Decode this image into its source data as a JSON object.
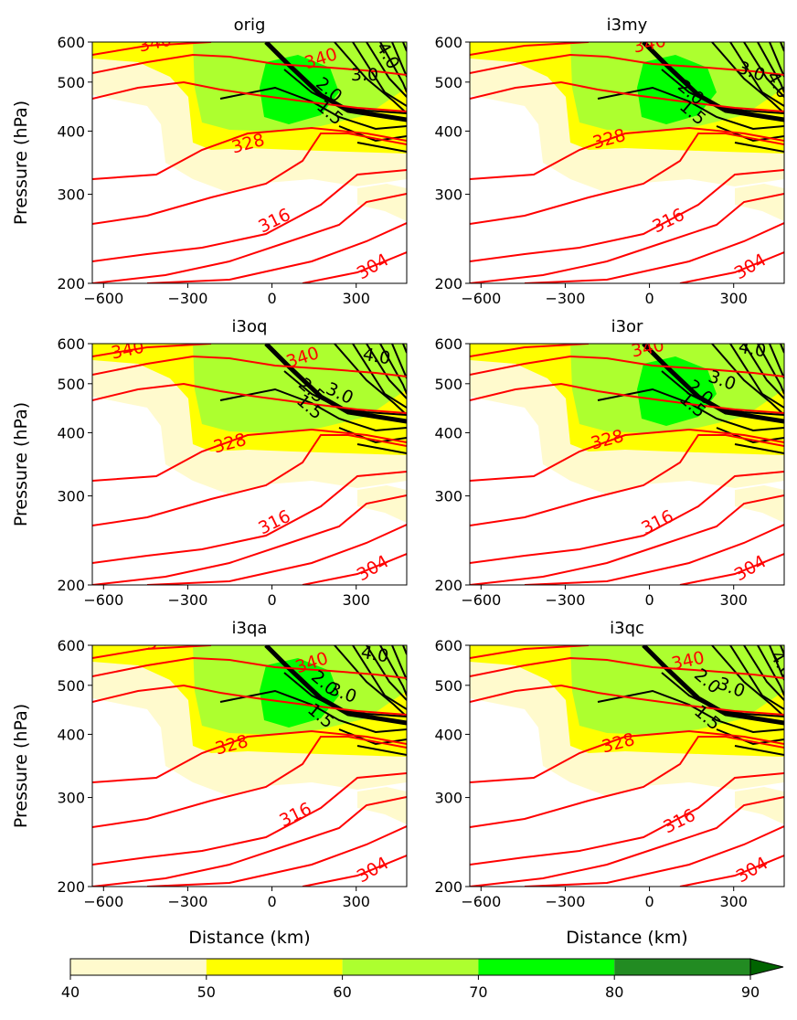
{
  "figure": {
    "ylabel": "Pressure (hPa)",
    "xlabel": "Distance (km)",
    "colorbar": {
      "levels": [
        40,
        50,
        60,
        70,
        80,
        90
      ],
      "colors": [
        "#fffacd",
        "#ffff00",
        "#adff2f",
        "#00ff00",
        "#228b22",
        "#006400"
      ],
      "extend": "max"
    }
  },
  "chart_data": [
    {
      "type": "contour",
      "title": "orig",
      "xticks": [
        -600,
        -300,
        0,
        300
      ],
      "yticks": [
        200,
        300,
        400,
        500,
        600
      ],
      "xlim": [
        -640,
        480
      ],
      "ylim": [
        600,
        200
      ],
      "yscale": "log",
      "theta_labels": [
        "340",
        "340",
        "328",
        "316",
        "304"
      ],
      "pv_labels": [
        "4.0",
        "3.0",
        "2.0",
        "1.5"
      ],
      "max_level": 80
    },
    {
      "type": "contour",
      "title": "i3my",
      "xticks": [
        -600,
        -300,
        0,
        300
      ],
      "yticks": [
        200,
        300,
        400,
        500,
        600
      ],
      "xlim": [
        -640,
        480
      ],
      "ylim": [
        600,
        200
      ],
      "yscale": "log",
      "theta_labels": [
        "340",
        "328",
        "316",
        "304"
      ],
      "pv_labels": [
        "4.0",
        "3.0",
        "2.0",
        "1.5"
      ],
      "max_level": 80
    },
    {
      "type": "contour",
      "title": "i3oq",
      "xticks": [
        -600,
        -300,
        0,
        300
      ],
      "yticks": [
        200,
        300,
        400,
        500,
        600
      ],
      "xlim": [
        -640,
        480
      ],
      "ylim": [
        600,
        200
      ],
      "yscale": "log",
      "theta_labels": [
        "340",
        "340",
        "328",
        "316",
        "304"
      ],
      "pv_labels": [
        "4.0",
        "3.0",
        "2.5",
        "1.5"
      ],
      "max_level": 70
    },
    {
      "type": "contour",
      "title": "i3or",
      "xticks": [
        -600,
        -300,
        0,
        300
      ],
      "yticks": [
        200,
        300,
        400,
        500,
        600
      ],
      "xlim": [
        -640,
        480
      ],
      "ylim": [
        600,
        200
      ],
      "yscale": "log",
      "theta_labels": [
        "340",
        "328",
        "316",
        "304"
      ],
      "pv_labels": [
        "4.0",
        "3.0",
        "2.0",
        "1.5"
      ],
      "max_level": 80
    },
    {
      "type": "contour",
      "title": "i3qa",
      "xticks": [
        -600,
        -300,
        0,
        300
      ],
      "yticks": [
        200,
        300,
        400,
        500,
        600
      ],
      "xlim": [
        -640,
        480
      ],
      "ylim": [
        600,
        200
      ],
      "yscale": "log",
      "theta_labels": [
        "340",
        "340",
        "328",
        "316",
        "304"
      ],
      "pv_labels": [
        "4.0",
        "3.0",
        "2.0",
        "1.5"
      ],
      "max_level": 80
    },
    {
      "type": "contour",
      "title": "i3qc",
      "xticks": [
        -600,
        -300,
        0,
        300
      ],
      "yticks": [
        200,
        300,
        400,
        500,
        600
      ],
      "xlim": [
        -640,
        480
      ],
      "ylim": [
        600,
        200
      ],
      "yscale": "log",
      "theta_labels": [
        "340",
        "328",
        "316",
        "304"
      ],
      "pv_labels": [
        "4.0",
        "3.0",
        "2.0",
        "1.5"
      ],
      "max_level": 70
    }
  ]
}
